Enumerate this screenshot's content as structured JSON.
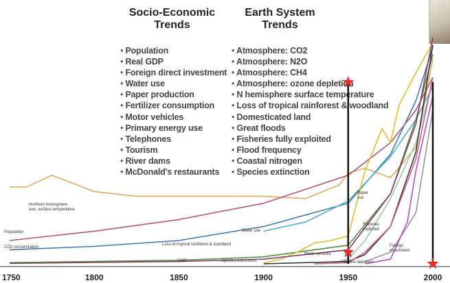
{
  "headers": {
    "socio": [
      "Socio-Economic",
      "Trends"
    ],
    "earth": [
      "Earth System",
      "Trends"
    ]
  },
  "socio_list": [
    "Population",
    "Real GDP",
    "Foreign direct investment",
    "Water use",
    "Paper production",
    "Fertilizer consumption",
    "Motor vehicles",
    "Primary energy use",
    "Telephones",
    "Tourism",
    "River dams",
    "McDonald's restaurants"
  ],
  "earth_list": [
    "Atmosphere: CO2",
    "Atmosphere: N2O",
    "Atmosphere: CH4",
    "Atmosphere: ozone depletion",
    "N hemisphere surface temperature",
    "Loss of tropical rainforest & woodland",
    "Domesticated land",
    "Great floods",
    "Fisheries fully exploited",
    "Flood frequency",
    "Coastal nitrogen",
    "Species extinction"
  ],
  "chart_data": {
    "type": "line",
    "title": "",
    "xlabel": "",
    "ylabel": "",
    "xlim": [
      1750,
      2000
    ],
    "x_ticks": [
      "1750",
      "1800",
      "1850",
      "1900",
      "1950",
      "2000"
    ],
    "grid": false,
    "series": [
      {
        "label": "Northern hemisphere ave. surface temperature",
        "color": "#e8a85a",
        "points": [
          [
            1750,
            0.33
          ],
          [
            1760,
            0.33
          ],
          [
            1775,
            0.38
          ],
          [
            1800,
            0.31
          ],
          [
            1825,
            0.29
          ],
          [
            1850,
            0.29
          ],
          [
            1900,
            0.29
          ],
          [
            1925,
            0.28
          ],
          [
            1945,
            0.34
          ],
          [
            1950,
            0.39
          ],
          [
            1960,
            0.41
          ],
          [
            1975,
            0.37
          ],
          [
            1990,
            0.5
          ],
          [
            2000,
            0.88
          ]
        ]
      },
      {
        "label": "Population",
        "color": "#c0516a",
        "points": [
          [
            1750,
            0.1
          ],
          [
            1800,
            0.14
          ],
          [
            1850,
            0.19
          ],
          [
            1900,
            0.26
          ],
          [
            1950,
            0.38
          ],
          [
            1975,
            0.52
          ],
          [
            1990,
            0.66
          ],
          [
            2000,
            0.8
          ]
        ]
      },
      {
        "label": "CO2 concentration",
        "color": "#3e78b8",
        "points": [
          [
            1750,
            0.06
          ],
          [
            1800,
            0.075
          ],
          [
            1850,
            0.1
          ],
          [
            1900,
            0.16
          ],
          [
            1950,
            0.26
          ],
          [
            1975,
            0.47
          ],
          [
            1990,
            0.7
          ],
          [
            2000,
            0.93
          ]
        ]
      },
      {
        "label": "Water use",
        "color": "#49b2c6",
        "points": [
          [
            1900,
            0.14
          ],
          [
            1925,
            0.18
          ],
          [
            1950,
            0.27
          ],
          [
            1975,
            0.46
          ],
          [
            1990,
            0.62
          ],
          [
            2000,
            0.76
          ]
        ]
      },
      {
        "label": "Loss of tropical rainforest & woodland",
        "color": "#4f8f3c",
        "points": [
          [
            1750,
            0.005
          ],
          [
            1800,
            0.01
          ],
          [
            1850,
            0.015
          ],
          [
            1900,
            0.03
          ],
          [
            1950,
            0.08
          ],
          [
            1975,
            0.3
          ],
          [
            1990,
            0.62
          ],
          [
            2000,
            0.9
          ]
        ]
      },
      {
        "label": "Paper use",
        "color": "#e2bd2c",
        "points": [
          [
            1900,
            0.002
          ],
          [
            1910,
            0.02
          ],
          [
            1920,
            0.05
          ],
          [
            1930,
            0.09
          ],
          [
            1940,
            0.1
          ],
          [
            1950,
            0.12
          ],
          [
            1960,
            0.4
          ],
          [
            1970,
            0.58
          ],
          [
            1975,
            0.52
          ],
          [
            1980,
            0.68
          ],
          [
            1990,
            0.82
          ],
          [
            2000,
            0.95
          ]
        ]
      },
      {
        "label": "Fisheries exploited",
        "color": "#9bc9a8",
        "points": [
          [
            1940,
            0.002
          ],
          [
            1950,
            0.02
          ],
          [
            1960,
            0.1
          ],
          [
            1975,
            0.28
          ],
          [
            1990,
            0.52
          ],
          [
            2000,
            0.78
          ]
        ]
      },
      {
        "label": "Motor vehicles",
        "color": "#333333",
        "points": [
          [
            1900,
            0.0
          ],
          [
            1950,
            0.01
          ],
          [
            1960,
            0.04
          ],
          [
            1975,
            0.16
          ],
          [
            1990,
            0.48
          ],
          [
            2000,
            0.94
          ]
        ]
      },
      {
        "label": "Foreign investment",
        "color": "#999999",
        "points": [
          [
            1960,
            0.01
          ],
          [
            1975,
            0.05
          ],
          [
            1985,
            0.16
          ],
          [
            1990,
            0.22
          ],
          [
            2000,
            0.66
          ]
        ]
      },
      {
        "label": "GDP",
        "color": "#8a3b6a",
        "points": [
          [
            1750,
            0.002
          ],
          [
            1850,
            0.01
          ],
          [
            1900,
            0.02
          ],
          [
            1950,
            0.06
          ],
          [
            1975,
            0.3
          ],
          [
            1990,
            0.6
          ],
          [
            2000,
            0.97
          ]
        ]
      },
      {
        "label": "Species extinctions",
        "color": "#d35a8f",
        "points": [
          [
            1930,
            0.0
          ],
          [
            1950,
            0.005
          ],
          [
            1960,
            0.05
          ],
          [
            1975,
            0.16
          ],
          [
            1990,
            0.45
          ],
          [
            2000,
            0.8
          ]
        ]
      },
      {
        "label": "Ozone depletion",
        "color": "#b44ac9",
        "points": [
          [
            1960,
            0.0
          ],
          [
            1975,
            0.02
          ],
          [
            1985,
            0.18
          ],
          [
            1990,
            0.4
          ],
          [
            2000,
            0.72
          ]
        ]
      }
    ],
    "markers": [
      {
        "x": 1950,
        "y": 0.78,
        "shape": "star",
        "color": "#e03030"
      },
      {
        "x": 1950,
        "y": 0.05,
        "shape": "star",
        "color": "#e03030"
      },
      {
        "x": 2000,
        "y": 0.0,
        "shape": "star",
        "color": "#e03030"
      }
    ],
    "vertical_lines": [
      1950,
      2000
    ]
  }
}
